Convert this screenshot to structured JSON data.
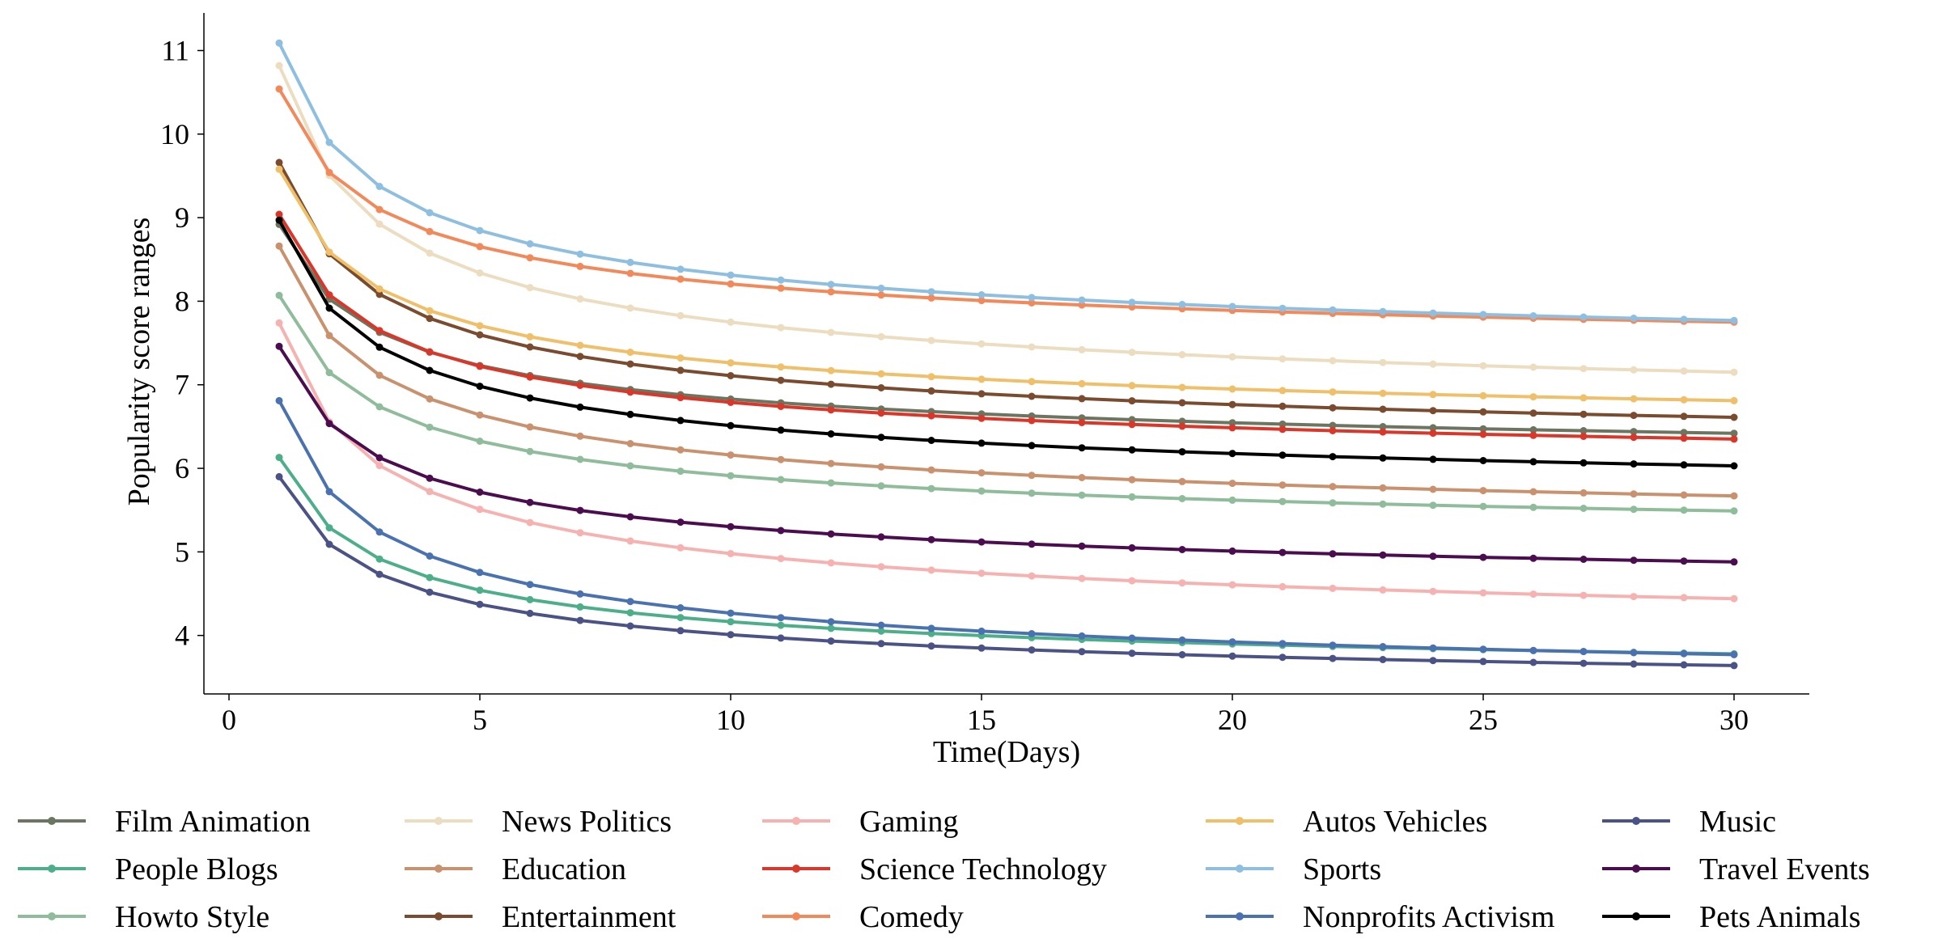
{
  "chart_data": {
    "type": "line",
    "xlabel": "Time(Days)",
    "ylabel": "Popularity score ranges",
    "xlim": [
      -0.5,
      31.5
    ],
    "ylim": [
      3.3,
      11.45
    ],
    "xticks": [
      0,
      5,
      10,
      15,
      20,
      25,
      30
    ],
    "yticks": [
      4,
      5,
      6,
      7,
      8,
      9,
      10,
      11
    ],
    "grid": false,
    "legend_position": "bottom",
    "legend_columns": 5,
    "x": [
      1,
      2,
      3,
      4,
      5,
      6,
      7,
      8,
      9,
      10,
      11,
      12,
      13,
      14,
      15,
      16,
      17,
      18,
      19,
      20,
      21,
      22,
      23,
      24,
      25,
      26,
      27,
      28,
      29,
      30
    ],
    "series": [
      {
        "name": "Film Animation",
        "color": "#6b7560",
        "start": 8.92,
        "end": 6.42
      },
      {
        "name": "People Blogs",
        "color": "#4caf8a",
        "start": 6.13,
        "end": 3.78
      },
      {
        "name": "Howto Style",
        "color": "#8fbc9a",
        "start": 8.07,
        "end": 5.49
      },
      {
        "name": "News Politics",
        "color": "#ecdcc0",
        "start": 10.82,
        "end": 7.15
      },
      {
        "name": "Education",
        "color": "#c9916e",
        "start": 8.66,
        "end": 5.67
      },
      {
        "name": "Entertainment",
        "color": "#7a4b2e",
        "start": 9.66,
        "end": 6.61
      },
      {
        "name": "Gaming",
        "color": "#f6b2b0",
        "start": 7.74,
        "end": 4.44
      },
      {
        "name": "Science Technology",
        "color": "#d9372a",
        "start": 9.04,
        "end": 6.35
      },
      {
        "name": "Comedy",
        "color": "#f2895a",
        "start": 10.54,
        "end": 7.75
      },
      {
        "name": "Autos Vehicles",
        "color": "#efbf6a",
        "start": 9.58,
        "end": 6.81
      },
      {
        "name": "Sports",
        "color": "#8ebfe0",
        "start": 11.09,
        "end": 7.77
      },
      {
        "name": "Nonprofits Activism",
        "color": "#4a72b0",
        "start": 6.81,
        "end": 3.77
      },
      {
        "name": "Music",
        "color": "#4b5285",
        "start": 5.9,
        "end": 3.64
      },
      {
        "name": "Travel Events",
        "color": "#4b0d4f",
        "start": 7.46,
        "end": 4.88
      },
      {
        "name": "Pets Animals",
        "color": "#000000",
        "start": 8.97,
        "end": 6.03
      }
    ]
  }
}
